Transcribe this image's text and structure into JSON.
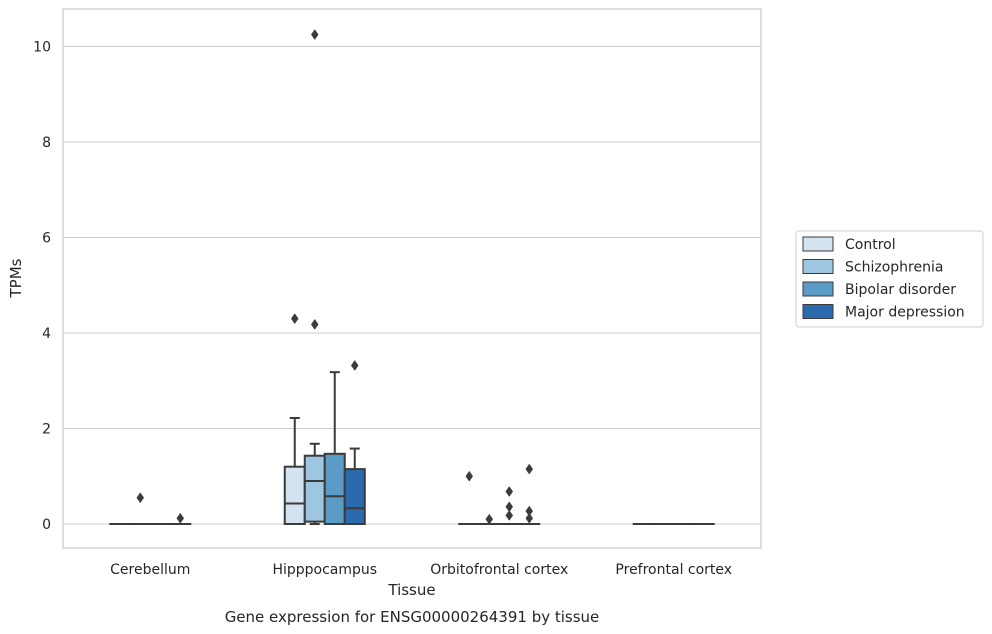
{
  "chart_data": {
    "type": "box",
    "title": "",
    "caption": "Gene expression for ENSG00000264391 by tissue",
    "xlabel": "Tissue",
    "ylabel": "TPMs",
    "ylim": [
      -0.5,
      10.8
    ],
    "yticks": [
      0,
      2,
      4,
      6,
      8,
      10
    ],
    "grid": "horizontal",
    "legend_position": "right",
    "categories": [
      "Cerebellum",
      "Hipppocampus",
      "Orbitofrontal cortex",
      "Prefrontal cortex"
    ],
    "series": [
      {
        "name": "Control",
        "color": "#d3e3f1",
        "boxes": [
          {
            "whislo": 0,
            "q1": 0,
            "med": 0,
            "q3": 0,
            "whishi": 0,
            "fliers": []
          },
          {
            "whislo": 0,
            "q1": 0,
            "med": 0.43,
            "q3": 1.2,
            "whishi": 2.22,
            "fliers": [
              4.3
            ]
          },
          {
            "whislo": 0,
            "q1": 0,
            "med": 0,
            "q3": 0,
            "whishi": 0,
            "fliers": [
              1.0
            ]
          },
          {
            "whislo": 0,
            "q1": 0,
            "med": 0,
            "q3": 0,
            "whishi": 0,
            "fliers": []
          }
        ]
      },
      {
        "name": "Schizophrenia",
        "color": "#9ec6e0",
        "boxes": [
          {
            "whislo": 0,
            "q1": 0,
            "med": 0,
            "q3": 0,
            "whishi": 0,
            "fliers": [
              0.55
            ]
          },
          {
            "whislo": 0,
            "q1": 0.05,
            "med": 0.9,
            "q3": 1.43,
            "whishi": 1.68,
            "fliers": [
              10.25,
              4.18
            ]
          },
          {
            "whislo": 0,
            "q1": 0,
            "med": 0,
            "q3": 0,
            "whishi": 0,
            "fliers": [
              0.1
            ]
          },
          {
            "whislo": 0,
            "q1": 0,
            "med": 0,
            "q3": 0,
            "whishi": 0,
            "fliers": []
          }
        ]
      },
      {
        "name": "Bipolar disorder",
        "color": "#5b9bc8",
        "boxes": [
          {
            "whislo": 0,
            "q1": 0,
            "med": 0,
            "q3": 0,
            "whishi": 0,
            "fliers": []
          },
          {
            "whislo": 0,
            "q1": 0,
            "med": 0.58,
            "q3": 1.47,
            "whishi": 3.18,
            "fliers": []
          },
          {
            "whislo": 0,
            "q1": 0,
            "med": 0,
            "q3": 0,
            "whishi": 0,
            "fliers": [
              0.68,
              0.36,
              0.18
            ]
          },
          {
            "whislo": 0,
            "q1": 0,
            "med": 0,
            "q3": 0,
            "whishi": 0,
            "fliers": []
          }
        ]
      },
      {
        "name": "Major depression",
        "color": "#2a6aad",
        "boxes": [
          {
            "whislo": 0,
            "q1": 0,
            "med": 0,
            "q3": 0,
            "whishi": 0,
            "fliers": [
              0.12
            ]
          },
          {
            "whislo": 0,
            "q1": 0,
            "med": 0.33,
            "q3": 1.15,
            "whishi": 1.58,
            "fliers": [
              3.32
            ]
          },
          {
            "whislo": 0,
            "q1": 0,
            "med": 0,
            "q3": 0,
            "whishi": 0,
            "fliers": [
              1.15,
              0.27,
              0.12
            ]
          },
          {
            "whislo": 0,
            "q1": 0,
            "med": 0,
            "q3": 0,
            "whishi": 0,
            "fliers": []
          }
        ]
      }
    ]
  }
}
